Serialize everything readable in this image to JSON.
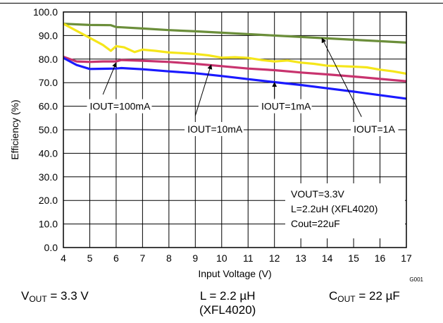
{
  "chart_data": {
    "type": "line",
    "title": "",
    "xlabel": "Input Voltage (V)",
    "ylabel": "Efficiency (%)",
    "xlim": [
      4,
      17
    ],
    "ylim": [
      0,
      100
    ],
    "xticks": [
      "4",
      "5",
      "6",
      "7",
      "8",
      "9",
      "10",
      "11",
      "12",
      "13",
      "14",
      "15",
      "16",
      "17"
    ],
    "yticks": [
      "0.0",
      "10.0",
      "20.0",
      "30.0",
      "40.0",
      "50.0",
      "60.0",
      "70.0",
      "80.0",
      "90.0",
      "100.0"
    ],
    "grid": true,
    "series": [
      {
        "name": "IOUT=1A",
        "color": "#6b8e3a",
        "x": [
          4,
          5,
          5.8,
          6,
          6.2,
          7,
          8,
          9,
          10,
          11,
          12,
          13,
          14,
          15,
          16,
          17
        ],
        "y": [
          95.0,
          94.5,
          94.4,
          93.6,
          93.5,
          93.0,
          92.3,
          91.8,
          91.2,
          90.6,
          90.0,
          89.4,
          88.8,
          88.2,
          87.6,
          87.0
        ]
      },
      {
        "name": "IOUT=100mA",
        "color": "#f5e61a",
        "x": [
          4,
          4.5,
          5,
          5.5,
          5.8,
          6,
          6.3,
          6.7,
          7,
          7.5,
          8,
          8.5,
          9,
          9.5,
          10,
          10.5,
          11,
          11.5,
          12,
          12.5,
          13,
          13.5,
          14,
          14.5,
          15,
          15.5,
          16,
          16.5,
          17
        ],
        "y": [
          95.0,
          92.0,
          89.0,
          86.0,
          83.5,
          85.5,
          85.0,
          83.0,
          84.0,
          83.5,
          82.8,
          82.5,
          82.2,
          81.6,
          80.6,
          80.8,
          80.5,
          79.6,
          79.0,
          79.4,
          78.5,
          78.0,
          77.2,
          77.0,
          76.8,
          76.5,
          75.5,
          74.8,
          73.8
        ]
      },
      {
        "name": "IOUT=10mA",
        "color": "#c8336e",
        "x": [
          4,
          4.5,
          5,
          5.5,
          6,
          6.2,
          7,
          8,
          9,
          10,
          11,
          12,
          13,
          14,
          15,
          16,
          17
        ],
        "y": [
          81.0,
          79.0,
          78.8,
          79.0,
          79.0,
          79.6,
          79.3,
          78.8,
          78.0,
          77.0,
          76.0,
          75.3,
          74.3,
          73.5,
          72.6,
          71.6,
          70.6
        ]
      },
      {
        "name": "IOUT=1mA",
        "color": "#1a1aff",
        "x": [
          4,
          4.5,
          5,
          5.5,
          6,
          6.2,
          7,
          8,
          9,
          10,
          11,
          12,
          13,
          14,
          15,
          16,
          17
        ],
        "y": [
          80.5,
          77.5,
          75.8,
          75.9,
          76.0,
          76.2,
          75.7,
          74.8,
          74.0,
          72.8,
          71.5,
          70.2,
          69.0,
          67.6,
          66.2,
          64.7,
          63.2
        ]
      }
    ],
    "annotations": [
      {
        "id": "iout100ma",
        "text": "IOUT=100mA",
        "label_x": 5.0,
        "label_y": 58.5,
        "arrow_from": [
          5.5,
          65.0
        ],
        "arrow_to": [
          6.0,
          78.5
        ]
      },
      {
        "id": "iout10ma",
        "text": "IOUT=10mA",
        "label_x": 8.7,
        "label_y": 48.8,
        "arrow_from": [
          9.0,
          56.0
        ],
        "arrow_to": [
          9.6,
          77.6
        ]
      },
      {
        "id": "iout1ma",
        "text": "IOUT=1mA",
        "label_x": 11.5,
        "label_y": 58.5,
        "arrow_from": [
          12.0,
          63.5
        ],
        "arrow_to": [
          12.0,
          70.1
        ]
      },
      {
        "id": "iout1a",
        "text": "IOUT=1A",
        "label_x": 15.0,
        "label_y": 48.8,
        "arrow_from": [
          15.3,
          55.5
        ],
        "arrow_to": [
          13.8,
          88.9
        ]
      }
    ],
    "conditions_box": [
      "VOUT=3.3V",
      "L=2.2uH (XFL4020)",
      "Cout=22uF"
    ],
    "figure_id": "G001"
  },
  "captions": {
    "vout": {
      "main": "V",
      "sub": "OUT",
      "rest": " = 3.3 V"
    },
    "inductor": {
      "line1": "L = 2.2 µH",
      "line2": "(XFL4020)"
    },
    "cout": {
      "main": "C",
      "sub": "OUT",
      "rest": " = 22 µF"
    }
  }
}
